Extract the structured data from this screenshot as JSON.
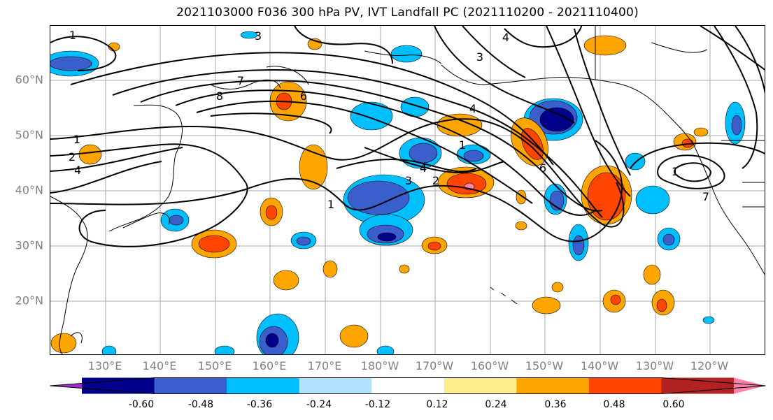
{
  "title": "2021103000 F036 300 hPa PV, IVT Landfall PC (2021110200 - 2021110400)",
  "lat_labels": [
    "60°N",
    "50°N",
    "40°N",
    "30°N",
    "20°N"
  ],
  "lon_labels": [
    "130°E",
    "140°E",
    "150°E",
    "160°E",
    "170°E",
    "180°W",
    "170°W",
    "160°W",
    "150°W",
    "140°W",
    "130°W",
    "120°W"
  ],
  "colorbar": {
    "colors": [
      "#9932cc",
      "#00008b",
      "#3a5fcd",
      "#00bfff",
      "#b0e2ff",
      "#ffffff",
      "#ffec8b",
      "#ffa500",
      "#ff4500",
      "#b22222",
      "#ff82ab"
    ],
    "tick_labels": [
      "-0.60",
      "-0.48",
      "-0.36",
      "-0.24",
      "-0.12",
      "0.12",
      "0.24",
      "0.36",
      "0.48",
      "0.60"
    ]
  },
  "contour_labels": [
    "1",
    "3",
    "3",
    "4",
    "7",
    "8",
    "6",
    "4",
    "1",
    "2",
    "4",
    "3",
    "2",
    "1",
    "1",
    "4",
    "6",
    "1",
    "7"
  ]
}
